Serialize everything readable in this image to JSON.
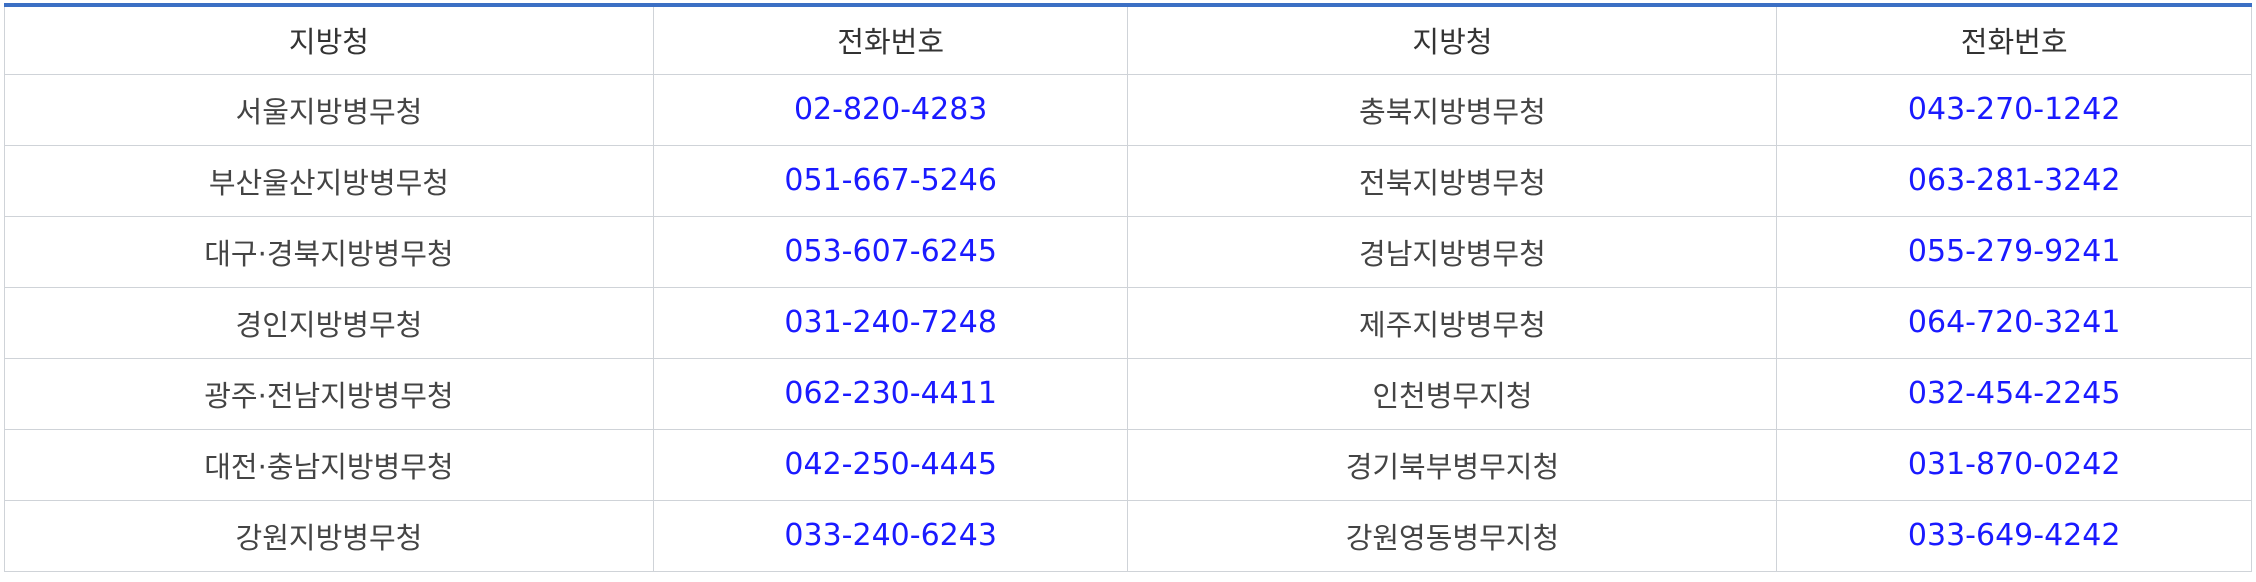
{
  "table": {
    "headers": [
      "지방청",
      "전화번호",
      "지방청",
      "전화번호"
    ],
    "rows": [
      {
        "left_name": "서울지방병무청",
        "left_phone": "02-820-4283",
        "right_name": "충북지방병무청",
        "right_phone": "043-270-1242"
      },
      {
        "left_name": "부산울산지방병무청",
        "left_phone": "051-667-5246",
        "right_name": "전북지방병무청",
        "right_phone": "063-281-3242"
      },
      {
        "left_name": "대구·경북지방병무청",
        "left_phone": "053-607-6245",
        "right_name": "경남지방병무청",
        "right_phone": "055-279-9241"
      },
      {
        "left_name": "경인지방병무청",
        "left_phone": "031-240-7248",
        "right_name": "제주지방병무청",
        "right_phone": "064-720-3241"
      },
      {
        "left_name": "광주·전남지방병무청",
        "left_phone": "062-230-4411",
        "right_name": "인천병무지청",
        "right_phone": "032-454-2245"
      },
      {
        "left_name": "대전·충남지방병무청",
        "left_phone": "042-250-4445",
        "right_name": "경기북부병무지청",
        "right_phone": "031-870-0242"
      },
      {
        "left_name": "강원지방병무청",
        "left_phone": "033-240-6243",
        "right_name": "강원영동병무지청",
        "right_phone": "033-649-4242"
      }
    ]
  },
  "colors": {
    "accent_border": "#3b6fc4",
    "phone_link": "#1a1aff",
    "grid_line": "#cfd3d8",
    "text": "#444444"
  }
}
